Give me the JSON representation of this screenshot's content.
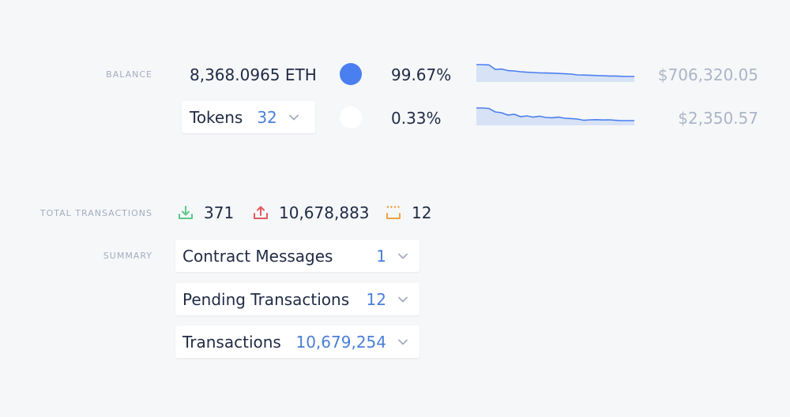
{
  "balance": {
    "label": "BALANCE",
    "eth_amount": "8,368.0965 ETH",
    "eth_percent": "99.67%",
    "eth_usd": "$706,320.05",
    "tokens_label": "Tokens",
    "tokens_count": "32",
    "tokens_percent": "0.33%",
    "tokens_usd": "$2,350.57",
    "eth_dot_color": "#4a7ff0",
    "tokens_dot_color": "#ffffff"
  },
  "transactions": {
    "label": "TOTAL TRANSACTIONS",
    "incoming": "371",
    "outgoing": "10,678,883",
    "pending": "12",
    "incoming_icon": "download-icon",
    "outgoing_icon": "upload-icon",
    "pending_icon": "pending-tray-icon",
    "incoming_color": "#5cc98a",
    "outgoing_color": "#e05b5b",
    "pending_color": "#f0a345"
  },
  "summary": {
    "label": "SUMMARY",
    "items": [
      {
        "label": "Contract Messages",
        "count": "1"
      },
      {
        "label": "Pending Transactions",
        "count": "12"
      },
      {
        "label": "Transactions",
        "count": "10,679,254"
      }
    ]
  },
  "sparklines": {
    "eth": [
      1.0,
      1.0,
      0.98,
      0.7,
      0.72,
      0.62,
      0.6,
      0.55,
      0.52,
      0.5,
      0.48,
      0.47,
      0.46,
      0.44,
      0.42,
      0.4,
      0.35,
      0.34,
      0.33,
      0.31,
      0.3,
      0.28,
      0.28,
      0.26,
      0.25,
      0.25
    ],
    "tokens": [
      1.0,
      1.0,
      0.97,
      0.75,
      0.7,
      0.55,
      0.6,
      0.45,
      0.5,
      0.42,
      0.48,
      0.4,
      0.38,
      0.42,
      0.35,
      0.33,
      0.3,
      0.22,
      0.25,
      0.26,
      0.24,
      0.25,
      0.22,
      0.2,
      0.2,
      0.2
    ]
  },
  "colors": {
    "accent": "#4a7ed9",
    "spark_line": "#4a7ff0",
    "spark_fill": "#d7e2f6"
  }
}
